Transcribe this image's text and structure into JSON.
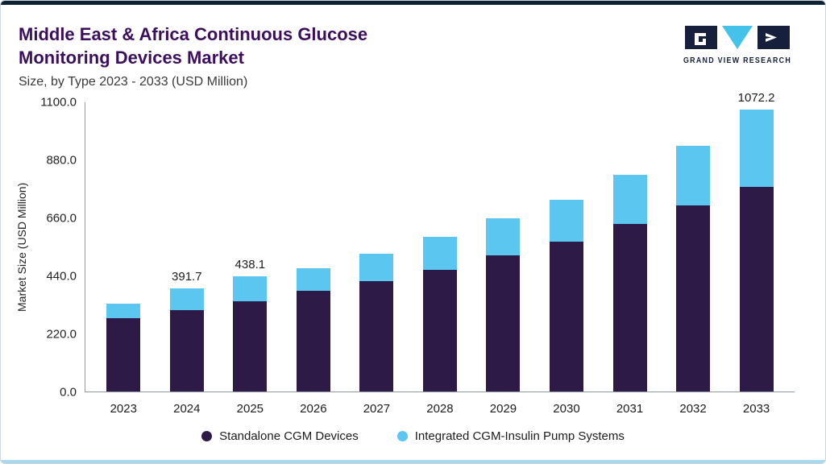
{
  "header": {
    "title_line1": "Middle East & Africa Continuous Glucose",
    "title_line2": "Monitoring Devices Market",
    "subtitle": "Size, by Type 2023 - 2033 (USD Million)",
    "brand": "GRAND VIEW RESEARCH"
  },
  "colors": {
    "title_purple": "#3B0F5E",
    "accent_top": "#0E2233",
    "accent_bottom": "#A9D9EE",
    "standalone_bar": "#2E1A47",
    "integrated_bar": "#5BC6F0",
    "axis_gray": "#8F9AA3",
    "brand_navy": "#16203C",
    "brand_cyan": "#45C2EA"
  },
  "chart_data": {
    "type": "bar",
    "stacked": true,
    "title": "Middle East & Africa Continuous Glucose Monitoring Devices Market Size, by Type 2023 - 2033 (USD Million)",
    "xlabel": "",
    "ylabel": "Market Size (USD Million)",
    "ylim": [
      0,
      1100
    ],
    "yticks": [
      "0.0",
      "220.0",
      "440.0",
      "660.0",
      "880.0",
      "1100.0"
    ],
    "grid": false,
    "legend_position": "bottom",
    "categories": [
      "2023",
      "2024",
      "2025",
      "2026",
      "2027",
      "2028",
      "2029",
      "2030",
      "2031",
      "2032",
      "2033"
    ],
    "series": [
      {
        "name": "Standalone CGM Devices",
        "color": "#2E1A47",
        "values": [
          280,
          310,
          344,
          384,
          420,
          463,
          518,
          570,
          637,
          707,
          777
        ]
      },
      {
        "name": "Integrated CGM-Insulin Pump Systems",
        "color": "#5BC6F0",
        "values": [
          55,
          81.7,
          94.1,
          85,
          104,
          125,
          140,
          161,
          189,
          228,
          295.2
        ]
      }
    ],
    "totals": [
      335,
      391.7,
      438.1,
      469,
      524,
      588,
      658,
      731,
      826,
      935,
      1072.2
    ],
    "value_labels": [
      "",
      "391.7",
      "438.1",
      "",
      "",
      "",
      "",
      "",
      "",
      "",
      "1072.2"
    ]
  }
}
